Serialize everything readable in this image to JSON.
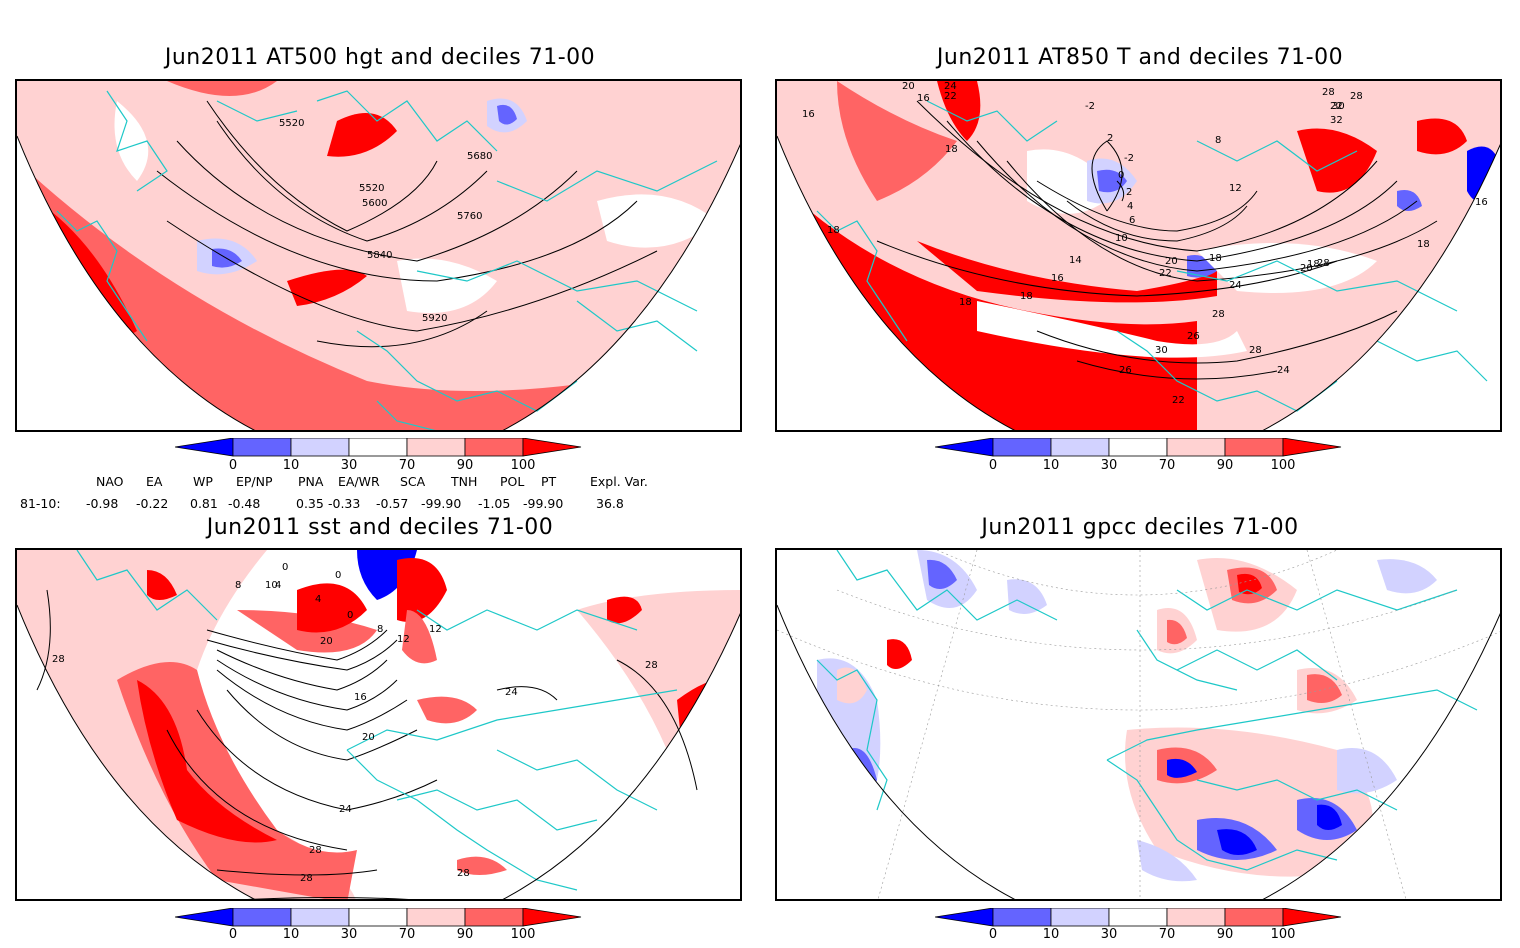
{
  "panels": [
    {
      "id": "at500",
      "title": "Jun2011 AT500 hgt and deciles 71-00",
      "contour_labels": [
        "5520",
        "5680",
        "5520",
        "5600",
        "5760",
        "5840",
        "5920"
      ]
    },
    {
      "id": "at850",
      "title": "Jun2011 AT850 T and deciles 71-00",
      "contour_labels": [
        "20",
        "24",
        "22",
        "16",
        "18",
        "16",
        "-2",
        "2",
        "-2",
        "0",
        "2",
        "4",
        "6",
        "8",
        "12",
        "10",
        "14",
        "16",
        "18",
        "18",
        "18",
        "18",
        "20",
        "22",
        "24",
        "26",
        "28",
        "30",
        "28",
        "26",
        "24",
        "22",
        "20",
        "18",
        "28",
        "28",
        "22",
        "28",
        "30",
        "32",
        "16",
        "18"
      ]
    },
    {
      "id": "sst",
      "title": "Jun2011 sst and deciles 71-00",
      "contour_labels": [
        "28",
        "8",
        "10",
        "0",
        "4",
        "0",
        "4",
        "0",
        "8",
        "12",
        "12",
        "16",
        "20",
        "24",
        "24",
        "28",
        "28",
        "28",
        "20",
        "28"
      ]
    },
    {
      "id": "gpcc",
      "title": "Jun2011 gpcc deciles 71-00",
      "contour_labels": []
    }
  ],
  "colorbar": {
    "ticks": [
      "0",
      "10",
      "30",
      "70",
      "90",
      "100"
    ],
    "colors": [
      "#0000ff",
      "#6464ff",
      "#d2d2ff",
      "#ffffff",
      "#ffd2d2",
      "#ff6464",
      "#ff0000"
    ]
  },
  "teleconnections": {
    "headers": [
      "NAO",
      "EA",
      "WP",
      "EP/NP",
      "PNA",
      "EA/WR",
      "SCA",
      "TNH",
      "POL",
      "PT",
      "Expl. Var."
    ],
    "row_label": "81-10:",
    "values": [
      "-0.98",
      "-0.22",
      "0.81",
      "-0.48",
      "0.35",
      "-0.33",
      "-0.57",
      "-99.90",
      "-1.05",
      "-99.90",
      "36.8"
    ]
  },
  "map_colors": {
    "coast": "#1ec8c8",
    "deep_red": "#ff0000",
    "mid_red": "#ff6464",
    "light_red": "#ffd2d2",
    "light_blue": "#d2d2ff",
    "mid_blue": "#6464ff",
    "deep_blue": "#0000ff"
  }
}
